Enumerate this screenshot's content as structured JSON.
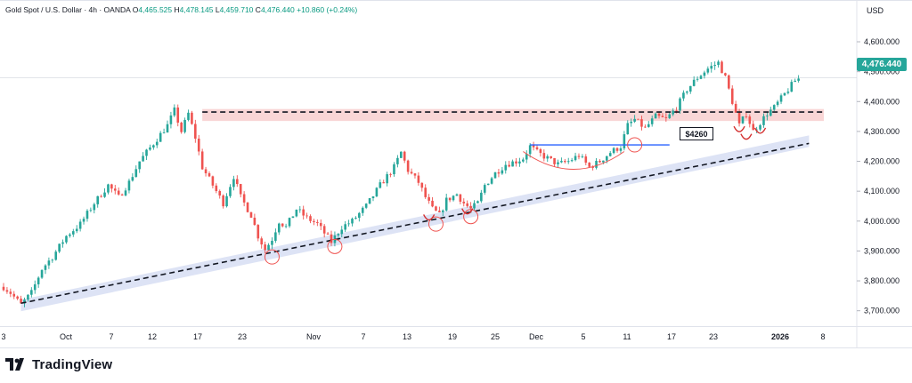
{
  "legend": {
    "symbol": "Gold Spot / U.S. Dollar · 4h · OANDA",
    "o_label": "O",
    "o_value": "4,465.525",
    "h_label": "H",
    "h_value": "4,478.145",
    "l_label": "L",
    "l_value": "4,459.710",
    "c_label": "C",
    "c_value": "4,476.440",
    "change": "+10.860 (+0.24%)"
  },
  "axis": {
    "currency": "USD"
  },
  "last_price": "4,476.440",
  "annotation": "$4260",
  "brand": {
    "name": "TradingView"
  },
  "colors": {
    "up": "#26a69a",
    "down": "#ef5350",
    "resistance_zone": "#f9d6d6",
    "support_band": "#dde3f5",
    "neckline": "#2962ff",
    "circles": "#ef5350"
  },
  "chart_data": {
    "type": "candlestick",
    "ylim": [
      3650,
      4650
    ],
    "y_ticks": [
      3700,
      3800,
      3900,
      4000,
      4100,
      4200,
      4300,
      4400,
      4500,
      4600
    ],
    "y_tick_labels": [
      "3,700.000",
      "3,800.000",
      "3,900.000",
      "4,000.000",
      "4,100.000",
      "4,200.000",
      "4,300.000",
      "4,400.000",
      "4,500.000",
      "4,600.000"
    ],
    "x_ticks": [
      {
        "label": "3",
        "bold": false
      },
      {
        "label": "Oct",
        "bold": false
      },
      {
        "label": "7",
        "bold": false
      },
      {
        "label": "12",
        "bold": false
      },
      {
        "label": "17",
        "bold": false
      },
      {
        "label": "23",
        "bold": false
      },
      {
        "label": "Nov",
        "bold": false
      },
      {
        "label": "7",
        "bold": false
      },
      {
        "label": "13",
        "bold": false
      },
      {
        "label": "19",
        "bold": false
      },
      {
        "label": "25",
        "bold": false
      },
      {
        "label": "Dec",
        "bold": false
      },
      {
        "label": "5",
        "bold": false
      },
      {
        "label": "11",
        "bold": false
      },
      {
        "label": "17",
        "bold": false
      },
      {
        "label": "23",
        "bold": false
      },
      {
        "label": "2026",
        "bold": true
      },
      {
        "label": "8",
        "bold": false
      }
    ],
    "price_path": [
      [
        0,
        3780
      ],
      [
        2,
        3760
      ],
      [
        5,
        3720
      ],
      [
        8,
        3760
      ],
      [
        11,
        3840
      ],
      [
        14,
        3880
      ],
      [
        18,
        3950
      ],
      [
        22,
        3990
      ],
      [
        26,
        4060
      ],
      [
        30,
        4120
      ],
      [
        33,
        4080
      ],
      [
        36,
        4130
      ],
      [
        39,
        4200
      ],
      [
        43,
        4260
      ],
      [
        47,
        4320
      ],
      [
        49,
        4370
      ],
      [
        51,
        4300
      ],
      [
        53,
        4360
      ],
      [
        55,
        4280
      ],
      [
        57,
        4180
      ],
      [
        60,
        4120
      ],
      [
        63,
        4060
      ],
      [
        66,
        4150
      ],
      [
        68,
        4080
      ],
      [
        71,
        4020
      ],
      [
        73,
        3950
      ],
      [
        75,
        3905
      ],
      [
        77,
        3940
      ],
      [
        79,
        4000
      ],
      [
        81,
        3980
      ],
      [
        84,
        4040
      ],
      [
        87,
        4010
      ],
      [
        90,
        3990
      ],
      [
        92,
        3960
      ],
      [
        94,
        3930
      ],
      [
        97,
        3980
      ],
      [
        100,
        4000
      ],
      [
        104,
        4050
      ],
      [
        108,
        4120
      ],
      [
        112,
        4180
      ],
      [
        114,
        4230
      ],
      [
        116,
        4170
      ],
      [
        119,
        4130
      ],
      [
        121,
        4080
      ],
      [
        123,
        4040
      ],
      [
        125,
        4020
      ],
      [
        127,
        4070
      ],
      [
        130,
        4090
      ],
      [
        132,
        4060
      ],
      [
        134,
        4040
      ],
      [
        136,
        4060
      ],
      [
        138,
        4120
      ],
      [
        141,
        4160
      ],
      [
        144,
        4190
      ],
      [
        147,
        4200
      ],
      [
        149,
        4210
      ],
      [
        151,
        4250
      ],
      [
        153,
        4230
      ],
      [
        156,
        4210
      ],
      [
        159,
        4190
      ],
      [
        162,
        4200
      ],
      [
        165,
        4220
      ],
      [
        168,
        4180
      ],
      [
        171,
        4200
      ],
      [
        174,
        4230
      ],
      [
        177,
        4250
      ],
      [
        179,
        4320
      ],
      [
        181,
        4340
      ],
      [
        184,
        4310
      ],
      [
        187,
        4350
      ],
      [
        190,
        4340
      ],
      [
        193,
        4380
      ],
      [
        196,
        4440
      ],
      [
        199,
        4480
      ],
      [
        202,
        4510
      ],
      [
        205,
        4530
      ],
      [
        207,
        4480
      ],
      [
        209,
        4400
      ],
      [
        211,
        4320
      ],
      [
        213,
        4360
      ],
      [
        215,
        4300
      ],
      [
        217,
        4330
      ],
      [
        219,
        4360
      ],
      [
        221,
        4380
      ],
      [
        223,
        4410
      ],
      [
        225,
        4440
      ],
      [
        227,
        4470
      ],
      [
        228,
        4476
      ]
    ],
    "resistance_zone": [
      4335,
      4375
    ],
    "resistance_line": 4365,
    "neckline": {
      "value": 4255,
      "x_start": 151,
      "x_end": 191,
      "label": "$4260"
    },
    "support_line": [
      [
        5,
        3725
      ],
      [
        231,
        4260
      ]
    ]
  }
}
